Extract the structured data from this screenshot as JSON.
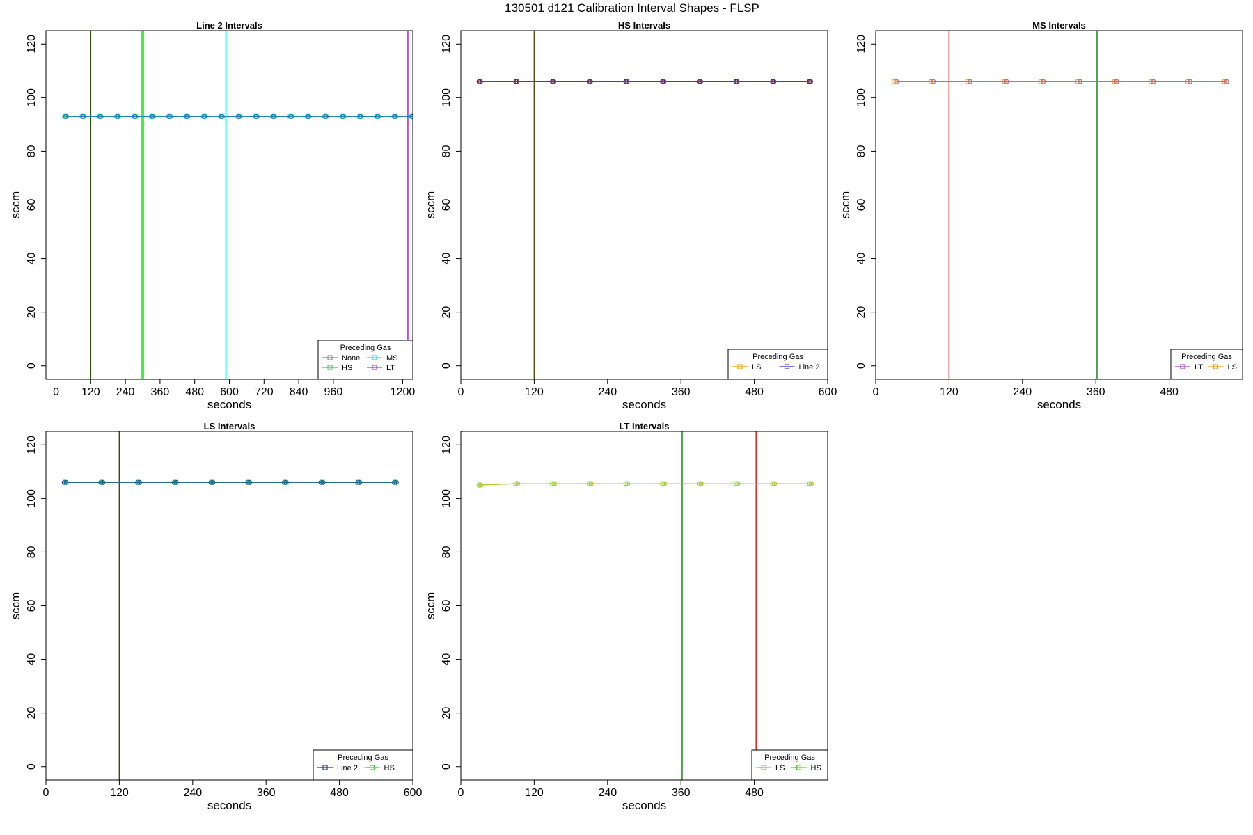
{
  "figure_title": "130501   d121   Calibration Interval Shapes - FLSP",
  "chart_data": [
    {
      "type": "line",
      "title": "Line 2 Intervals",
      "xlabel": "seconds",
      "ylabel": "sccm",
      "xlim": [
        -35,
        1235
      ],
      "ylim": [
        -5,
        125
      ],
      "xticks": [
        0,
        120,
        240,
        360,
        480,
        600,
        720,
        840,
        960,
        1200
      ],
      "yticks": [
        0,
        20,
        40,
        60,
        80,
        100,
        120
      ],
      "grid": false,
      "legend": {
        "title": "Preceding Gas",
        "placement": "bottom-right",
        "columns": 2,
        "entries": [
          {
            "name": "None",
            "color": "#888888"
          },
          {
            "name": "MS",
            "color": "#00e5e5"
          },
          {
            "name": "HS",
            "color": "#22dd22"
          },
          {
            "name": "LT",
            "color": "#aa33cc"
          }
        ]
      },
      "series": [
        {
          "name": "None",
          "color": "#888888",
          "x": [
            30,
            90,
            150,
            210,
            270,
            330,
            390,
            450,
            510,
            570,
            630,
            690,
            750,
            810,
            870,
            930,
            990,
            1050,
            1110,
            1170,
            1230
          ],
          "y": [
            93,
            93,
            93,
            93,
            93,
            93,
            93,
            93,
            93,
            93,
            93,
            93,
            93,
            93,
            93,
            93,
            93,
            93,
            93,
            93,
            93
          ]
        },
        {
          "name": "MS",
          "color": "#00dddd",
          "x": [
            30,
            90,
            150,
            210,
            270,
            330,
            390,
            450,
            510,
            570,
            630,
            690,
            750,
            810,
            870,
            930,
            990,
            1050,
            1110,
            1170,
            1230
          ],
          "y": [
            93,
            93,
            93,
            93,
            93,
            93,
            93,
            93,
            93,
            93,
            93,
            93,
            93,
            93,
            93,
            93,
            93,
            93,
            93,
            93,
            93
          ]
        },
        {
          "name": "HS",
          "color": "#22dd22",
          "x": [
            36,
            96,
            156,
            216,
            276,
            336,
            396,
            456,
            516,
            576,
            636,
            696,
            756,
            816,
            876,
            936,
            996,
            1056,
            1116,
            1176,
            1236
          ],
          "y": [
            93,
            93,
            93,
            93,
            93,
            93,
            93,
            93,
            93,
            93,
            93,
            93,
            93,
            93,
            93,
            93,
            93,
            93,
            93,
            93,
            93
          ]
        },
        {
          "name": "LT",
          "color": "#2277cc",
          "x": [
            33,
            93,
            153,
            213,
            273,
            333,
            393,
            453,
            513,
            573,
            633,
            693,
            753,
            813,
            873,
            933,
            993,
            1053,
            1113,
            1173,
            1233
          ],
          "y": [
            93,
            93,
            93,
            93,
            93,
            93,
            93,
            93,
            93,
            93,
            93,
            93,
            93,
            93,
            93,
            93,
            93,
            93,
            93,
            93,
            93
          ]
        }
      ],
      "vlines": [
        {
          "x": 120,
          "color": "#2d5a12"
        },
        {
          "x": 297,
          "color": "#44ee44"
        },
        {
          "x": 300,
          "color": "#44ee44"
        },
        {
          "x": 303,
          "color": "#44ee44"
        },
        {
          "x": 586,
          "color": "#88ffff"
        },
        {
          "x": 590,
          "color": "#88ffff"
        },
        {
          "x": 594,
          "color": "#88ffff"
        },
        {
          "x": 1218,
          "color": "#aa33cc"
        }
      ]
    },
    {
      "type": "line",
      "title": "HS Intervals",
      "xlabel": "seconds",
      "ylabel": "sccm",
      "xlim": [
        0,
        600
      ],
      "ylim": [
        -5,
        125
      ],
      "xticks": [
        0,
        120,
        240,
        360,
        480,
        600
      ],
      "yticks": [
        0,
        20,
        40,
        60,
        80,
        100,
        120
      ],
      "grid": false,
      "legend": {
        "title": "Preceding Gas",
        "placement": "bottom-right",
        "columns": 2,
        "entries": [
          {
            "name": "LS",
            "color": "#ff9900"
          },
          {
            "name": "Line 2",
            "color": "#2222cc"
          }
        ]
      },
      "series": [
        {
          "name": "LS",
          "color": "#cc3322",
          "x": [
            30,
            90,
            150,
            210,
            270,
            330,
            390,
            450,
            510,
            570
          ],
          "y": [
            106,
            106,
            106,
            106,
            106,
            106,
            106,
            106,
            106,
            106
          ]
        },
        {
          "name": "Line 2",
          "color": "#2222aa",
          "x": [
            30,
            90,
            150,
            210,
            270,
            330,
            390,
            450,
            510,
            570
          ],
          "y": [
            106,
            106,
            106,
            106,
            106,
            106,
            106,
            106,
            106,
            106
          ]
        },
        {
          "name": "LS",
          "color": "#993322",
          "x": [
            32,
            92,
            152,
            212,
            272,
            332,
            392,
            452,
            512,
            572
          ],
          "y": [
            106,
            106,
            106,
            106,
            106,
            106,
            106,
            106,
            106,
            106
          ]
        }
      ],
      "vlines": [
        {
          "x": 120,
          "color": "#5a4a12"
        }
      ]
    },
    {
      "type": "line",
      "title": "MS Intervals",
      "xlabel": "seconds",
      "ylabel": "sccm",
      "xlim": [
        0,
        600
      ],
      "ylim": [
        -5,
        125
      ],
      "xticks": [
        0,
        120,
        240,
        360,
        480
      ],
      "yticks": [
        0,
        20,
        40,
        60,
        80,
        100,
        120
      ],
      "grid": false,
      "legend": {
        "title": "Preceding Gas",
        "placement": "bottom-right",
        "columns": 2,
        "entries": [
          {
            "name": "LT",
            "color": "#aa33cc"
          },
          {
            "name": "LS",
            "color": "#ff9900"
          }
        ]
      },
      "series": [
        {
          "name": "LS",
          "color": "#ff9933",
          "x": [
            30,
            90,
            150,
            210,
            270,
            330,
            390,
            450,
            510,
            570
          ],
          "y": [
            106,
            106,
            106,
            106,
            106,
            106,
            106,
            106,
            106,
            106
          ]
        },
        {
          "name": "LT",
          "color": "#bb6688",
          "x": [
            34,
            94,
            154,
            214,
            274,
            334,
            394,
            454,
            514,
            574
          ],
          "y": [
            106,
            106,
            106,
            106,
            106,
            106,
            106,
            106,
            106,
            106
          ]
        }
      ],
      "vlines": [
        {
          "x": 120,
          "color": "#cc3333"
        },
        {
          "x": 362,
          "color": "#2d8a2d"
        }
      ]
    },
    {
      "type": "line",
      "title": "LS Intervals",
      "xlabel": "seconds",
      "ylabel": "sccm",
      "xlim": [
        0,
        600
      ],
      "ylim": [
        -5,
        125
      ],
      "xticks": [
        0,
        120,
        240,
        360,
        480,
        600
      ],
      "yticks": [
        0,
        20,
        40,
        60,
        80,
        100,
        120
      ],
      "grid": false,
      "legend": {
        "title": "Preceding Gas",
        "placement": "bottom-right",
        "columns": 2,
        "entries": [
          {
            "name": "Line 2",
            "color": "#2222cc"
          },
          {
            "name": "HS",
            "color": "#22dd22"
          }
        ]
      },
      "series": [
        {
          "name": "Line 2",
          "color": "#2222aa",
          "x": [
            30,
            90,
            150,
            210,
            270,
            330,
            390,
            450,
            510,
            570
          ],
          "y": [
            106,
            106,
            106,
            106,
            106,
            106,
            106,
            106,
            106,
            106
          ]
        },
        {
          "name": "HS",
          "color": "#22aa88",
          "x": [
            31,
            91,
            151,
            211,
            271,
            331,
            391,
            451,
            511,
            571
          ],
          "y": [
            106,
            106,
            106,
            106,
            106,
            106,
            106,
            106,
            106,
            106
          ]
        },
        {
          "name": "Line 2",
          "color": "#226688",
          "x": [
            33,
            93,
            153,
            213,
            273,
            333,
            393,
            453,
            513,
            573
          ],
          "y": [
            106,
            106,
            106,
            106,
            106,
            106,
            106,
            106,
            106,
            106
          ]
        }
      ],
      "vlines": [
        {
          "x": 120,
          "color": "#3a4a12"
        }
      ]
    },
    {
      "type": "line",
      "title": "LT Intervals",
      "xlabel": "seconds",
      "ylabel": "sccm",
      "xlim": [
        0,
        600
      ],
      "ylim": [
        -5,
        125
      ],
      "xticks": [
        0,
        120,
        240,
        360,
        480
      ],
      "yticks": [
        0,
        20,
        40,
        60,
        80,
        100,
        120
      ],
      "grid": false,
      "legend": {
        "title": "Preceding Gas",
        "placement": "bottom-right",
        "columns": 2,
        "entries": [
          {
            "name": "LS",
            "color": "#ff9900"
          },
          {
            "name": "HS",
            "color": "#22dd22"
          }
        ]
      },
      "series": [
        {
          "name": "HS",
          "color": "#66dd22",
          "x": [
            30,
            90,
            150,
            210,
            270,
            330,
            390,
            450,
            510,
            570
          ],
          "y": [
            105,
            105.5,
            105.5,
            105.5,
            105.5,
            105.5,
            105.5,
            105.5,
            105.5,
            105.5
          ]
        },
        {
          "name": "LS",
          "color": "#ccbb33",
          "x": [
            33,
            93,
            153,
            213,
            273,
            333,
            393,
            453,
            513,
            573
          ],
          "y": [
            105,
            105.5,
            105.5,
            105.5,
            105.5,
            105.5,
            105.5,
            105.5,
            105.5,
            105.5
          ]
        }
      ],
      "vlines": [
        {
          "x": 362,
          "color": "#2d8a2d"
        },
        {
          "x": 483,
          "color": "#cc3333"
        }
      ]
    }
  ]
}
